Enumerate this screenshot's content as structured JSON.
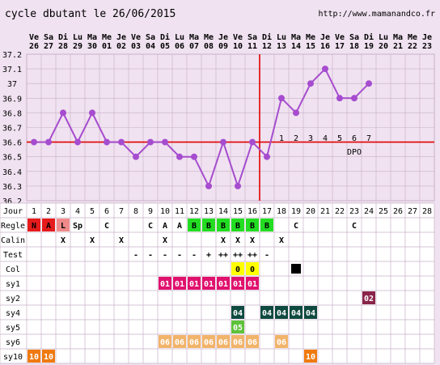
{
  "header": {
    "title": "cycle dbutant le 26/06/2015",
    "site": "http://www.mamanandco.fr"
  },
  "colors": {
    "bg": "#f0e2f0",
    "temp_line": "#a64ccf",
    "cover_line": "#e10000",
    "grid": "#c8b0c8",
    "red_N": "#e51b1b",
    "red_A": "#e51b1b",
    "pink_L": "#f08a8a",
    "green_B": "#22dd22",
    "yellow_0": "#ffff00",
    "sy1_color": "#e0126e",
    "sy2_color": "#8a2448",
    "sy4_color": "#0f4a40",
    "sy5_color": "#5ec23a",
    "sy6_color": "#f2b46a",
    "sy10_color": "#ef7a10",
    "col_black": "#000000"
  },
  "chart_data": {
    "type": "line",
    "title": "cycle dbutant le 26/06/2015",
    "dates": [
      {
        "day": "Ve",
        "num": "26"
      },
      {
        "day": "Sa",
        "num": "27"
      },
      {
        "day": "Di",
        "num": "28"
      },
      {
        "day": "Lu",
        "num": "29"
      },
      {
        "day": "Ma",
        "num": "30"
      },
      {
        "day": "Me",
        "num": "01"
      },
      {
        "day": "Je",
        "num": "02"
      },
      {
        "day": "Ve",
        "num": "03"
      },
      {
        "day": "Sa",
        "num": "04"
      },
      {
        "day": "Di",
        "num": "05"
      },
      {
        "day": "Lu",
        "num": "06"
      },
      {
        "day": "Ma",
        "num": "07"
      },
      {
        "day": "Me",
        "num": "08"
      },
      {
        "day": "Je",
        "num": "09"
      },
      {
        "day": "Ve",
        "num": "10"
      },
      {
        "day": "Sa",
        "num": "11"
      },
      {
        "day": "Di",
        "num": "12"
      },
      {
        "day": "Lu",
        "num": "13"
      },
      {
        "day": "Ma",
        "num": "14"
      },
      {
        "day": "Me",
        "num": "15"
      },
      {
        "day": "Je",
        "num": "16"
      },
      {
        "day": "Ve",
        "num": "17"
      },
      {
        "day": "Sa",
        "num": "18"
      },
      {
        "day": "Di",
        "num": "19"
      },
      {
        "day": "Lu",
        "num": "20"
      },
      {
        "day": "Ma",
        "num": "21"
      },
      {
        "day": "Me",
        "num": "22"
      },
      {
        "day": "Je",
        "num": "23"
      }
    ],
    "cycle_days": [
      "1",
      "2",
      "3",
      "4",
      "5",
      "6",
      "7",
      "8",
      "9",
      "10",
      "11",
      "12",
      "13",
      "14",
      "15",
      "16",
      "17",
      "18",
      "19",
      "20",
      "21",
      "22",
      "23",
      "24",
      "25",
      "26",
      "27",
      "28"
    ],
    "temperatures": [
      36.6,
      36.6,
      36.8,
      36.6,
      36.8,
      36.6,
      36.6,
      36.5,
      36.6,
      36.6,
      36.5,
      36.5,
      36.3,
      36.6,
      36.3,
      36.6,
      36.5,
      36.9,
      36.8,
      37.0,
      37.1,
      36.9,
      36.9,
      37.0
    ],
    "ylim": [
      36.2,
      37.2
    ],
    "yticks": [
      "37.2",
      "37.1",
      "37",
      "36.9",
      "36.8",
      "36.7",
      "36.6",
      "36.5",
      "36.4",
      "36.3",
      "36.2"
    ],
    "cover_line": 36.6,
    "ovulation_cycle_day": 17,
    "post_ov_labels": [
      "1",
      "2",
      "3",
      "4",
      "5",
      "6",
      "7"
    ],
    "dpo_label": "DPO",
    "jour_label": "Jour",
    "rows": [
      {
        "label": "Regle",
        "cells": [
          {
            "d": 1,
            "t": "N",
            "c": "red_N",
            "fg": "#000"
          },
          {
            "d": 2,
            "t": "A",
            "c": "red_A",
            "fg": "#000"
          },
          {
            "d": 3,
            "t": "L",
            "c": "pink_L",
            "fg": "#000"
          },
          {
            "d": 4,
            "t": "Sp",
            "c": "",
            "fg": "#000"
          },
          {
            "d": 6,
            "t": "C",
            "c": "",
            "fg": "#000"
          },
          {
            "d": 9,
            "t": "C",
            "c": "",
            "fg": "#000"
          },
          {
            "d": 10,
            "t": "A",
            "c": "",
            "fg": "#000"
          },
          {
            "d": 11,
            "t": "A",
            "c": "",
            "fg": "#000"
          },
          {
            "d": 12,
            "t": "B",
            "c": "green_B",
            "fg": "#000"
          },
          {
            "d": 13,
            "t": "B",
            "c": "green_B",
            "fg": "#000"
          },
          {
            "d": 14,
            "t": "B",
            "c": "green_B",
            "fg": "#000"
          },
          {
            "d": 15,
            "t": "B",
            "c": "green_B",
            "fg": "#000"
          },
          {
            "d": 16,
            "t": "B",
            "c": "green_B",
            "fg": "#000"
          },
          {
            "d": 17,
            "t": "B",
            "c": "green_B",
            "fg": "#000"
          },
          {
            "d": 19,
            "t": "C",
            "c": "",
            "fg": "#000"
          },
          {
            "d": 23,
            "t": "C",
            "c": "",
            "fg": "#000"
          }
        ]
      },
      {
        "label": "Calin",
        "cells": [
          {
            "d": 3,
            "t": "X",
            "c": "",
            "fg": "#000"
          },
          {
            "d": 5,
            "t": "X",
            "c": "",
            "fg": "#000"
          },
          {
            "d": 7,
            "t": "X",
            "c": "",
            "fg": "#000"
          },
          {
            "d": 10,
            "t": "X",
            "c": "",
            "fg": "#000"
          },
          {
            "d": 14,
            "t": "X",
            "c": "",
            "fg": "#000"
          },
          {
            "d": 15,
            "t": "X",
            "c": "",
            "fg": "#000"
          },
          {
            "d": 16,
            "t": "X",
            "c": "",
            "fg": "#000"
          },
          {
            "d": 18,
            "t": "X",
            "c": "",
            "fg": "#000"
          }
        ]
      },
      {
        "label": "Test",
        "cells": [
          {
            "d": 8,
            "t": "-",
            "c": "",
            "fg": "#000"
          },
          {
            "d": 9,
            "t": "-",
            "c": "",
            "fg": "#000"
          },
          {
            "d": 10,
            "t": "-",
            "c": "",
            "fg": "#000"
          },
          {
            "d": 11,
            "t": "-",
            "c": "",
            "fg": "#000"
          },
          {
            "d": 12,
            "t": "-",
            "c": "",
            "fg": "#000"
          },
          {
            "d": 13,
            "t": "+",
            "c": "",
            "fg": "#000"
          },
          {
            "d": 14,
            "t": "++",
            "c": "",
            "fg": "#000"
          },
          {
            "d": 15,
            "t": "++",
            "c": "",
            "fg": "#000"
          },
          {
            "d": 16,
            "t": "++",
            "c": "",
            "fg": "#000"
          },
          {
            "d": 17,
            "t": "-",
            "c": "",
            "fg": "#000"
          }
        ]
      },
      {
        "label": "Col",
        "cells": [
          {
            "d": 15,
            "t": "0",
            "c": "yellow_0",
            "fg": "#000"
          },
          {
            "d": 16,
            "t": "0",
            "c": "yellow_0",
            "fg": "#000"
          },
          {
            "d": 19,
            "t": "",
            "c": "col_black",
            "fg": "#000"
          }
        ]
      },
      {
        "label": "sy1",
        "cells": [
          {
            "d": 10,
            "t": "01",
            "c": "sy1_color",
            "fg": "#fff"
          },
          {
            "d": 11,
            "t": "01",
            "c": "sy1_color",
            "fg": "#fff"
          },
          {
            "d": 12,
            "t": "01",
            "c": "sy1_color",
            "fg": "#fff"
          },
          {
            "d": 13,
            "t": "01",
            "c": "sy1_color",
            "fg": "#fff"
          },
          {
            "d": 14,
            "t": "01",
            "c": "sy1_color",
            "fg": "#fff"
          },
          {
            "d": 15,
            "t": "01",
            "c": "sy1_color",
            "fg": "#fff"
          },
          {
            "d": 16,
            "t": "01",
            "c": "sy1_color",
            "fg": "#fff"
          }
        ]
      },
      {
        "label": "sy2",
        "cells": [
          {
            "d": 24,
            "t": "02",
            "c": "sy2_color",
            "fg": "#fff"
          }
        ]
      },
      {
        "label": "sy4",
        "cells": [
          {
            "d": 15,
            "t": "04",
            "c": "sy4_color",
            "fg": "#fff"
          },
          {
            "d": 17,
            "t": "04",
            "c": "sy4_color",
            "fg": "#fff"
          },
          {
            "d": 18,
            "t": "04",
            "c": "sy4_color",
            "fg": "#fff"
          },
          {
            "d": 19,
            "t": "04",
            "c": "sy4_color",
            "fg": "#fff"
          },
          {
            "d": 20,
            "t": "04",
            "c": "sy4_color",
            "fg": "#fff"
          }
        ]
      },
      {
        "label": "sy5",
        "cells": [
          {
            "d": 15,
            "t": "05",
            "c": "sy5_color",
            "fg": "#fff"
          }
        ]
      },
      {
        "label": "sy6",
        "cells": [
          {
            "d": 10,
            "t": "06",
            "c": "sy6_color",
            "fg": "#fff"
          },
          {
            "d": 11,
            "t": "06",
            "c": "sy6_color",
            "fg": "#fff"
          },
          {
            "d": 12,
            "t": "06",
            "c": "sy6_color",
            "fg": "#fff"
          },
          {
            "d": 13,
            "t": "06",
            "c": "sy6_color",
            "fg": "#fff"
          },
          {
            "d": 14,
            "t": "06",
            "c": "sy6_color",
            "fg": "#fff"
          },
          {
            "d": 15,
            "t": "06",
            "c": "sy6_color",
            "fg": "#fff"
          },
          {
            "d": 16,
            "t": "06",
            "c": "sy6_color",
            "fg": "#fff"
          },
          {
            "d": 18,
            "t": "06",
            "c": "sy6_color",
            "fg": "#fff"
          }
        ]
      },
      {
        "label": "sy10",
        "cells": [
          {
            "d": 1,
            "t": "10",
            "c": "sy10_color",
            "fg": "#fff"
          },
          {
            "d": 2,
            "t": "10",
            "c": "sy10_color",
            "fg": "#fff"
          },
          {
            "d": 20,
            "t": "10",
            "c": "sy10_color",
            "fg": "#fff"
          }
        ]
      }
    ]
  }
}
